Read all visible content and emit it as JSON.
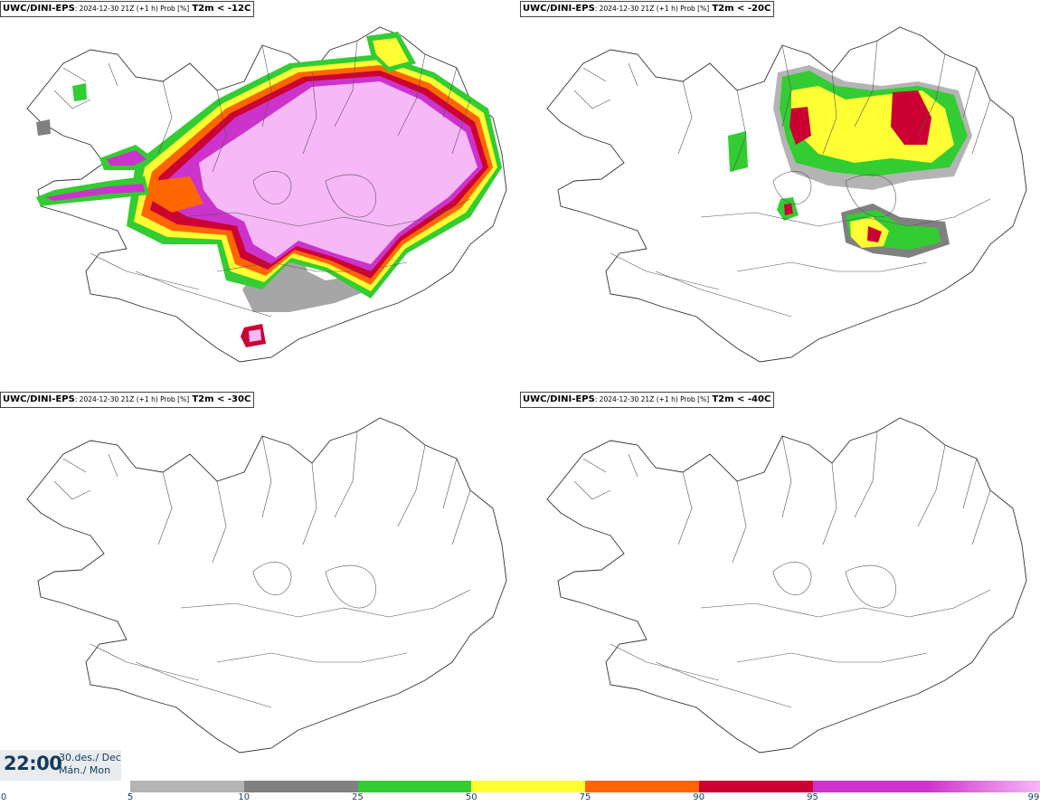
{
  "panels": [
    {
      "model": "UWC/DINI-EPS",
      "meta": ": 2024-12-30 21Z (+1 h) Prob [%]",
      "threshold": "T2m < -12C"
    },
    {
      "model": "UWC/DINI-EPS",
      "meta": ": 2024-12-30 21Z (+1 h) Prob [%]",
      "threshold": "T2m < -20C"
    },
    {
      "model": "UWC/DINI-EPS",
      "meta": ": 2024-12-30 21Z (+1 h) Prob [%]",
      "threshold": "T2m < -30C"
    },
    {
      "model": "UWC/DINI-EPS",
      "meta": ": 2024-12-30 21Z (+1 h) Prob [%]",
      "threshold": "T2m < -40C"
    }
  ],
  "clock": {
    "time": "22:00",
    "date_line1": "30.des./ Dec",
    "date_line2": "Mán./ Mon"
  },
  "colorbar": {
    "ticks": [
      "0",
      "5",
      "10",
      "25",
      "50",
      "75",
      "90",
      "95",
      "99"
    ],
    "colors": [
      "#b4b4b4",
      "#808080",
      "#33cc33",
      "#ffff33",
      "#ff6600",
      "#cc0033",
      "#cc33cc",
      "#f7b8f7"
    ]
  }
}
